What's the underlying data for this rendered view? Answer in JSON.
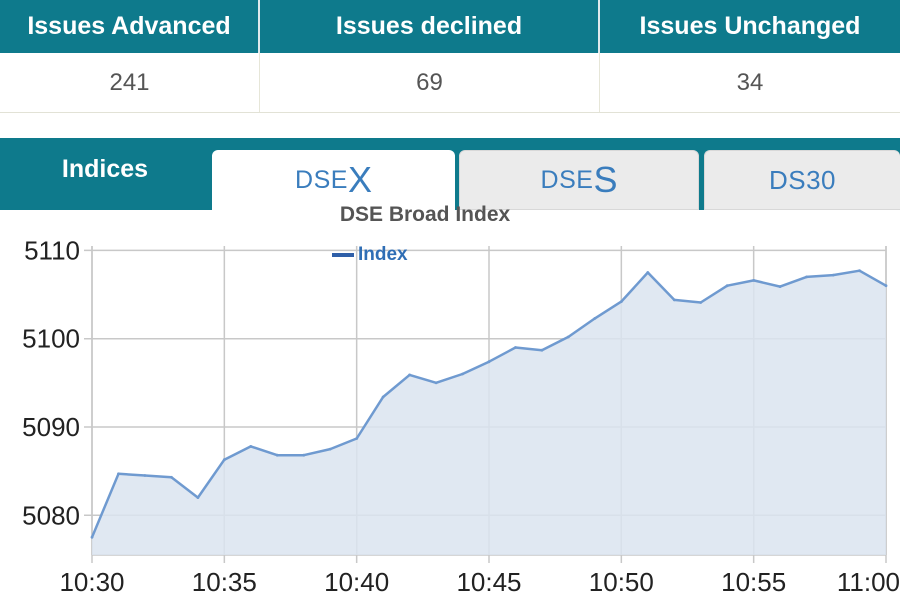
{
  "issues": {
    "headers": [
      "Issues Advanced",
      "Issues declined",
      "Issues Unchanged"
    ],
    "values": [
      "241",
      "69",
      "34"
    ]
  },
  "tabs": {
    "indices_label": "Indices",
    "items": [
      {
        "prefix": "DSE",
        "suffix": "X",
        "selected": true
      },
      {
        "prefix": "DSE",
        "suffix": "S",
        "selected": false
      },
      {
        "prefix": "DS30",
        "suffix": "",
        "selected": false
      }
    ]
  },
  "colors": {
    "header_bg": "#0e7a8c",
    "line": "#6f9ad0",
    "fill": "#dbe4f0",
    "legend": "#2f5fa8",
    "grid": "#c8c8c8"
  },
  "chart_data": {
    "type": "area",
    "title": "DSE Broad Index",
    "legend_position": "top-center",
    "grid": true,
    "series": [
      {
        "name": "Index",
        "x": [
          "10:30",
          "10:31",
          "10:32",
          "10:33",
          "10:34",
          "10:35",
          "10:36",
          "10:37",
          "10:38",
          "10:39",
          "10:40",
          "10:41",
          "10:42",
          "10:43",
          "10:44",
          "10:45",
          "10:46",
          "10:47",
          "10:48",
          "10:49",
          "10:50",
          "10:51",
          "10:52",
          "10:53",
          "10:54",
          "10:55",
          "10:56",
          "10:57",
          "10:58",
          "10:59",
          "11:00"
        ],
        "values": [
          5077.5,
          5084.7,
          5084.5,
          5084.3,
          5082.0,
          5086.3,
          5087.8,
          5086.8,
          5086.8,
          5087.5,
          5088.7,
          5093.4,
          5095.9,
          5095.0,
          5096.0,
          5097.4,
          5099.0,
          5098.7,
          5100.2,
          5102.3,
          5104.2,
          5107.5,
          5104.4,
          5104.1,
          5106.0,
          5106.6,
          5105.9,
          5107.0,
          5107.2,
          5107.7,
          5106.0
        ]
      }
    ],
    "y_ticks": [
      5080,
      5090,
      5100,
      5110
    ],
    "x_ticks": [
      "10:30",
      "10:35",
      "10:40",
      "10:45",
      "10:50",
      "10:55",
      "11:00"
    ],
    "ylim": [
      5075.5,
      5110.5
    ],
    "xlim": [
      "10:30",
      "11:00"
    ]
  }
}
